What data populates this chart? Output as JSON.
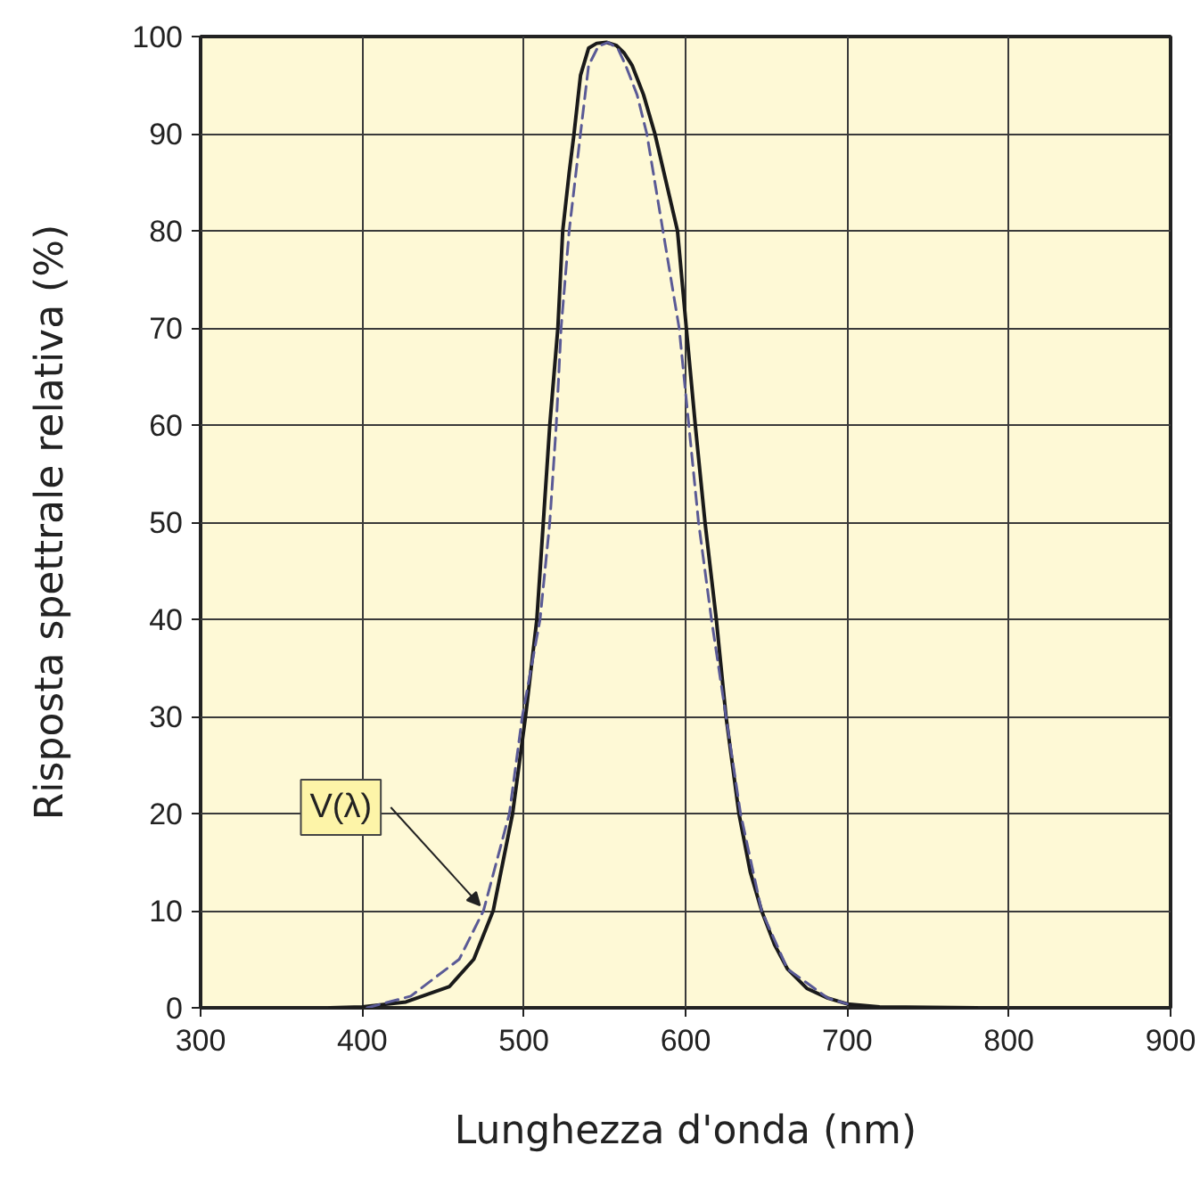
{
  "chart_data": {
    "type": "line",
    "xlabel": "Lunghezza d'onda (nm)",
    "ylabel": "Risposta spettrale relativa (%)",
    "xlim": [
      300,
      900
    ],
    "ylim": [
      0,
      100
    ],
    "xticks": [
      300,
      400,
      500,
      600,
      700,
      800,
      900
    ],
    "yticks": [
      0,
      10,
      20,
      30,
      40,
      50,
      60,
      70,
      80,
      90,
      100
    ],
    "grid": true,
    "series": [
      {
        "color": "#1a1a1a",
        "line_style": "solid",
        "x": [
          380,
          400,
          427,
          454,
          469,
          481,
          493,
          501,
          508,
          512,
          516,
          521,
          524,
          528,
          531,
          535,
          540,
          545,
          551,
          557,
          562,
          567,
          574,
          581,
          588,
          595,
          601,
          606,
          612,
          619,
          625,
          633,
          640,
          647,
          655,
          663,
          675,
          688,
          700,
          720,
          780
        ],
        "values": [
          0,
          0.1,
          0.6,
          2.2,
          5,
          10,
          20,
          30,
          40,
          50,
          60,
          70,
          80,
          86,
          90,
          96,
          98.8,
          99.3,
          99.4,
          99.1,
          98.3,
          97,
          94,
          90,
          85,
          80,
          69,
          60,
          50,
          40,
          30,
          20,
          14,
          10,
          6.5,
          4,
          2,
          1,
          0.4,
          0.1,
          0
        ]
      },
      {
        "name": "V(λ)",
        "color": "#5a5a96",
        "line_style": "dashed",
        "x": [
          403,
          430,
          460,
          475,
          491,
          499,
          510,
          516,
          520,
          523,
          528,
          535,
          540,
          546,
          552,
          558,
          563,
          570,
          576,
          586,
          596,
          602,
          608,
          616,
          625,
          634,
          647,
          663,
          688,
          700
        ],
        "values": [
          0,
          1.2,
          5,
          10,
          20,
          30,
          40,
          50,
          60,
          70,
          80,
          90,
          97,
          99,
          99.4,
          98.8,
          97,
          94,
          90,
          80,
          70,
          60,
          50,
          40,
          30,
          20,
          10,
          4,
          1,
          0.4
        ]
      }
    ]
  }
}
